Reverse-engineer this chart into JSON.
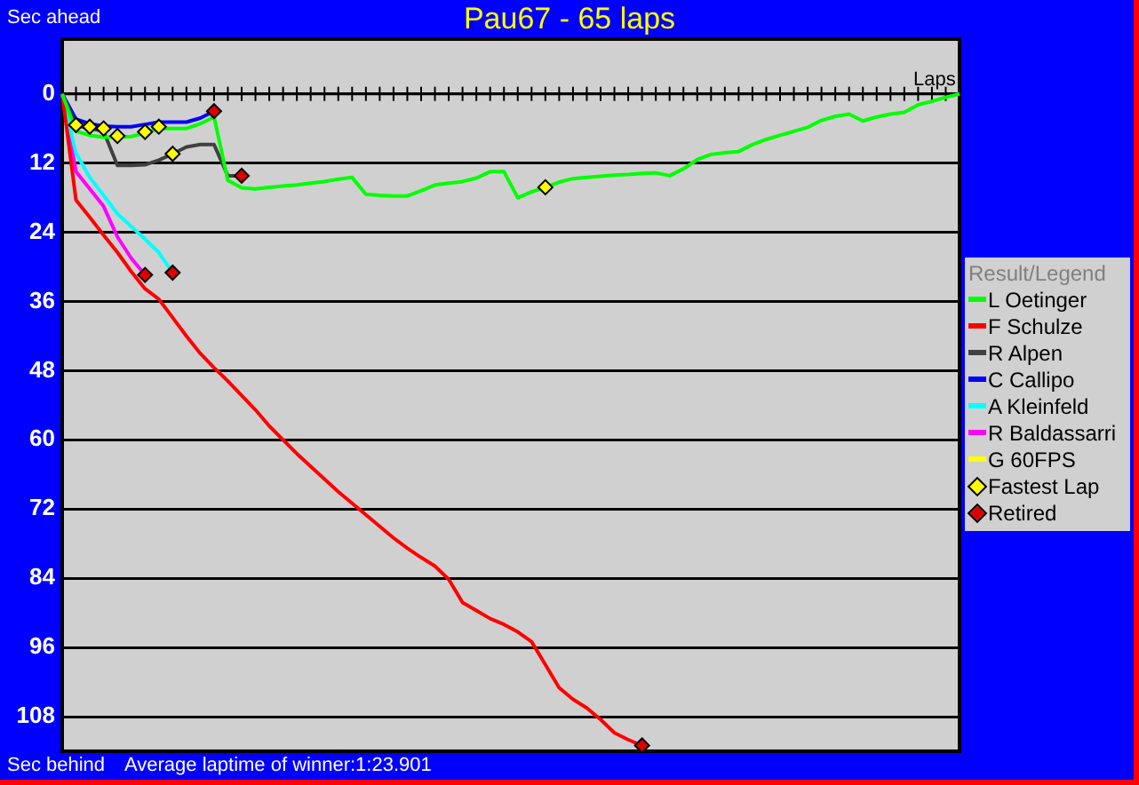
{
  "chart_data": {
    "type": "line",
    "title": "Pau67 - 65 laps",
    "ylabel": "Sec ahead",
    "y2label": "Sec behind",
    "xlabel": "Laps",
    "legend_title": "Result/Legend",
    "annotations": [
      "Average laptime of winner:1:23.901"
    ],
    "categories": [
      null,
      null,
      null,
      null,
      null,
      null,
      null,
      null,
      null,
      null,
      null,
      null,
      null,
      null,
      null,
      null,
      null,
      null,
      null,
      null,
      null,
      null,
      null,
      null,
      null,
      null,
      null,
      null,
      null,
      null,
      null,
      null,
      null,
      null,
      null,
      null,
      null,
      null,
      null,
      null,
      null,
      null,
      null,
      null,
      null,
      null,
      null,
      null,
      null,
      null,
      null,
      null,
      null,
      null,
      null,
      null,
      null,
      null,
      null,
      null,
      null,
      null,
      null,
      null,
      null,
      null
    ],
    "ylim": [
      114,
      -9.5
    ],
    "yticks": [
      0,
      12,
      24,
      36,
      48,
      60,
      72,
      84,
      96,
      108
    ],
    "grid": "y",
    "legend": "right",
    "marker": "none",
    "line_style": "solid",
    "series": [
      {
        "name": "L Oetinger",
        "color": "#00ff00",
        "type": "line",
        "values": [
          0,
          6.5,
          7.2,
          7.5,
          7.5,
          7.4,
          6.8,
          6,
          6,
          6,
          5.2,
          4,
          15,
          16.3,
          16.5,
          16.2,
          16,
          15.8,
          15.5,
          15.2,
          14.8,
          14.5,
          17.4,
          17.6,
          17.7,
          17.7,
          16.8,
          15.8,
          15.5,
          15.2,
          14.6,
          13.5,
          13.5,
          18,
          17,
          16.2,
          15.3,
          14.7,
          14.5,
          14.3,
          14.1,
          14,
          13.8,
          13.7,
          14.2,
          13,
          11.4,
          10.5,
          10.2,
          10,
          8.8,
          7.9,
          7.2,
          6.5,
          5.8,
          4.6,
          3.9,
          3.5,
          4.7,
          4,
          3.5,
          3.2,
          1.9,
          1.3,
          0.6,
          0
        ]
      },
      {
        "name": "F Schulze",
        "color": "#ff0000",
        "type": "line",
        "values": [
          0,
          18.4,
          21.4,
          24.5,
          27.5,
          30.8,
          33.8,
          35.6,
          38.8,
          42,
          45,
          47.5,
          49.8,
          52.3,
          54.8,
          57.6,
          60,
          62.4,
          64.6,
          66.8,
          69,
          71,
          73,
          75,
          77,
          78.8,
          80.4,
          81.9,
          84.2,
          88.2,
          89.6,
          91,
          92,
          93.3,
          95,
          99,
          103,
          105,
          106.5,
          108.5,
          110.8,
          112,
          113,
          null,
          null,
          null,
          null,
          null,
          null,
          null,
          null,
          null,
          null,
          null,
          null,
          null,
          null,
          null,
          null,
          null,
          null,
          null,
          null,
          null,
          null,
          null
        ]
      },
      {
        "name": "R Alpen",
        "color": "#404040",
        "type": "line",
        "values": [
          0,
          5.5,
          6,
          6.5,
          12.4,
          12.4,
          12.3,
          11.5,
          10.4,
          9.2,
          8.8,
          8.8,
          14.2,
          14.2,
          null,
          null,
          null,
          null,
          null,
          null,
          null,
          null,
          null,
          null,
          null,
          null,
          null,
          null,
          null,
          null,
          null,
          null,
          null,
          null,
          null,
          null,
          null,
          null,
          null,
          null,
          null,
          null,
          null,
          null,
          null,
          null,
          null,
          null,
          null,
          null,
          null,
          null,
          null,
          null,
          null,
          null,
          null,
          null,
          null,
          null,
          null,
          null,
          null,
          null,
          null,
          null
        ]
      },
      {
        "name": "C Callipo",
        "color": "#0000ff",
        "type": "line",
        "values": [
          0,
          4.4,
          5.2,
          5.6,
          5.7,
          5.7,
          5.3,
          4.9,
          4.9,
          4.9,
          4.2,
          3,
          null,
          null,
          null,
          null,
          null,
          null,
          null,
          null,
          null,
          null,
          null,
          null,
          null,
          null,
          null,
          null,
          null,
          null,
          null,
          null,
          null,
          null,
          null,
          null,
          null,
          null,
          null,
          null,
          null,
          null,
          null,
          null,
          null,
          null,
          null,
          null,
          null,
          null,
          null,
          null,
          null,
          null,
          null,
          null,
          null,
          null,
          null,
          null,
          null,
          null,
          null,
          null,
          null,
          null
        ]
      },
      {
        "name": "A Kleinfeld",
        "color": "#00ffff",
        "type": "line",
        "values": [
          0,
          10.3,
          14.5,
          17.6,
          20.8,
          23,
          25.2,
          27.5,
          31,
          null,
          null,
          null,
          null,
          null,
          null,
          null,
          null,
          null,
          null,
          null,
          null,
          null,
          null,
          null,
          null,
          null,
          null,
          null,
          null,
          null,
          null,
          null,
          null,
          null,
          null,
          null,
          null,
          null,
          null,
          null,
          null,
          null,
          null,
          null,
          null,
          null,
          null,
          null,
          null,
          null,
          null,
          null,
          null,
          null,
          null,
          null,
          null,
          null,
          null,
          null,
          null,
          null,
          null,
          null,
          null,
          null
        ]
      },
      {
        "name": "R Baldassarri",
        "color": "#ff00ff",
        "type": "line",
        "values": [
          0,
          13.5,
          16.5,
          19.5,
          24.8,
          28.5,
          31.4,
          null,
          null,
          null,
          null,
          null,
          null,
          null,
          null,
          null,
          null,
          null,
          null,
          null,
          null,
          null,
          null,
          null,
          null,
          null,
          null,
          null,
          null,
          null,
          null,
          null,
          null,
          null,
          null,
          null,
          null,
          null,
          null,
          null,
          null,
          null,
          null,
          null,
          null,
          null,
          null,
          null,
          null,
          null,
          null,
          null,
          null,
          null,
          null,
          null,
          null,
          null,
          null,
          null,
          null,
          null,
          null,
          null,
          null,
          null
        ]
      },
      {
        "name": "G 60FPS",
        "color": "#ffff00",
        "type": "line",
        "values": [
          null,
          null,
          null,
          null,
          null,
          null,
          null,
          null,
          null,
          null,
          null,
          null,
          null,
          null,
          null,
          null,
          null,
          null,
          null,
          null,
          null,
          null,
          null,
          null,
          null,
          null,
          null,
          null,
          null,
          null,
          null,
          null,
          null,
          null,
          null,
          null,
          null,
          null,
          null,
          null,
          null,
          null,
          null,
          null,
          null,
          null,
          null,
          null,
          null,
          null,
          null,
          null,
          null,
          null,
          null,
          null,
          null,
          null,
          null,
          null,
          null,
          null,
          null,
          null,
          null,
          null
        ]
      },
      {
        "name": "Fastest Lap",
        "color": "#ffff00",
        "type": "scatter",
        "marker": "diamond",
        "values": [
          null,
          5.4,
          5.7,
          6,
          7.3,
          null,
          6.6,
          5.7,
          10.4,
          null,
          null,
          null,
          null,
          null,
          null,
          null,
          null,
          null,
          null,
          null,
          null,
          null,
          null,
          null,
          null,
          null,
          null,
          null,
          null,
          null,
          null,
          null,
          null,
          null,
          null,
          16.2,
          null,
          null,
          null,
          null,
          null,
          null,
          null,
          null,
          null,
          null,
          null,
          null,
          null,
          null,
          null,
          null,
          null,
          null,
          null,
          null,
          null,
          null,
          null,
          null,
          null,
          null,
          null,
          null,
          null,
          null
        ]
      },
      {
        "name": "Retired",
        "color": "#dd0000",
        "type": "scatter",
        "marker": "diamond",
        "values": [
          null,
          null,
          null,
          null,
          null,
          null,
          31.4,
          null,
          31,
          null,
          null,
          3,
          null,
          14.2,
          null,
          null,
          null,
          null,
          null,
          null,
          null,
          null,
          null,
          null,
          null,
          null,
          null,
          null,
          null,
          null,
          null,
          null,
          null,
          null,
          null,
          null,
          null,
          null,
          null,
          null,
          null,
          null,
          113,
          null,
          null,
          null,
          null,
          null,
          null,
          null,
          null,
          null,
          null,
          null,
          null,
          null,
          null,
          null,
          null,
          null,
          null,
          null,
          null,
          null,
          null,
          null
        ]
      }
    ]
  }
}
